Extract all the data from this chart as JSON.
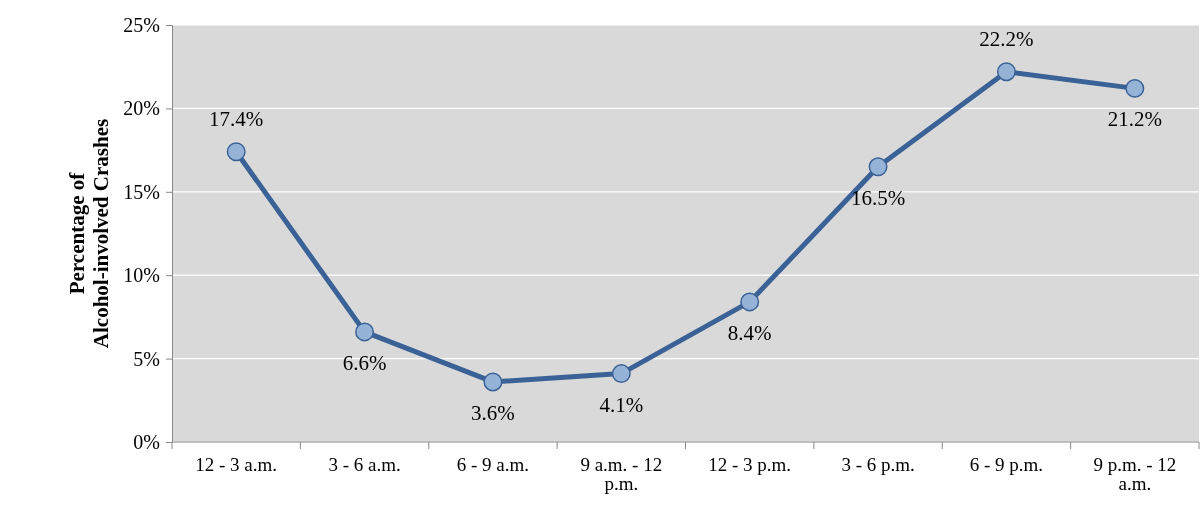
{
  "chart_data": {
    "type": "line",
    "ylabel": "Percentage of Alcohol-involved Crashes",
    "categories": [
      "12 - 3 a.m.",
      "3 - 6 a.m.",
      "6 - 9 a.m.",
      "9 a.m. - 12 p.m.",
      "12 - 3 p.m.",
      "3 - 6 p.m.",
      "6 - 9 p.m.",
      "9 p.m. - 12 a.m."
    ],
    "series": [
      {
        "color": "#3b6296",
        "values": [
          17.4,
          6.6,
          3.6,
          4.1,
          8.4,
          16.5,
          22.2,
          21.2
        ],
        "value_labels": [
          "17.4%",
          "6.6%",
          "3.6%",
          "4.1%",
          "8.4%",
          "16.5%",
          "22.2%",
          "21.2%"
        ]
      }
    ],
    "ylim": [
      0,
      25
    ],
    "yticks": [
      {
        "value": 0,
        "label": "0%"
      },
      {
        "value": 5,
        "label": "5%"
      },
      {
        "value": 10,
        "label": "10%"
      },
      {
        "value": 15,
        "label": "15%"
      },
      {
        "value": 20,
        "label": "20%"
      },
      {
        "value": 25,
        "label": "25%"
      }
    ],
    "grid": "y",
    "marker": "circle"
  }
}
